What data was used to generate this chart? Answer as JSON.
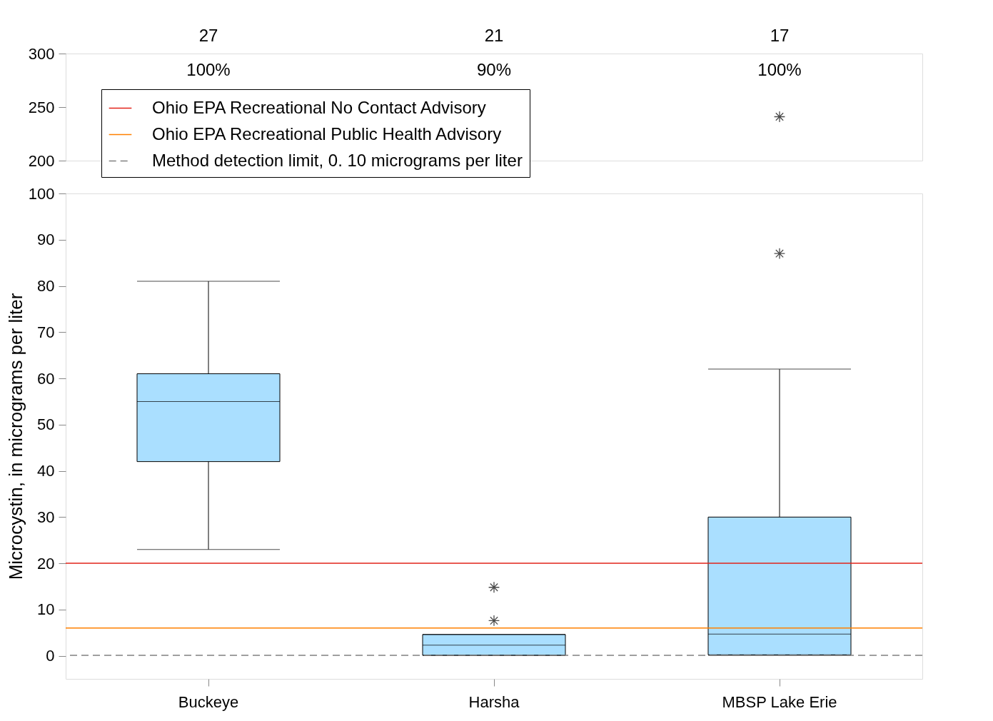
{
  "chart_data": [
    {
      "type": "scatter",
      "categories": [
        "Buckeye",
        "Harsha",
        "MBSP Lake Erie"
      ],
      "ylim": [
        200,
        300
      ],
      "yticks": [
        200,
        250,
        300
      ],
      "grid": false,
      "tick_labels": "y",
      "marker": "cross",
      "series": [
        {
          "type": "scatter",
          "color": "#000000",
          "x": [
            "MBSP Lake Erie"
          ],
          "values": [
            241
          ]
        }
      ],
      "annotations": [
        "27",
        "21",
        "17",
        "100%",
        "90%",
        "100%"
      ]
    },
    {
      "type": "box",
      "categories": [
        "Buckeye",
        "Harsha",
        "MBSP Lake Erie"
      ],
      "ylabel": "Microcystin, in micrograms per liter",
      "ylim": [
        -5,
        100
      ],
      "yticks": [
        0,
        10,
        20,
        30,
        40,
        50,
        60,
        70,
        80,
        90,
        100
      ],
      "grid": false,
      "marker": "cross",
      "legend": "top left",
      "series": [
        {
          "color": "#aadfff",
          "boxes": [
            {
              "low": 23,
              "q1": 42,
              "median": 55,
              "q3": 61,
              "high": 81
            },
            {
              "low": 0.1,
              "q1": 0.1,
              "median": 2.3,
              "q3": 4.6,
              "high": 4.6,
              "outliers": [
                7.6,
                14.8
              ]
            },
            {
              "low": 0.1,
              "q1": 0.2,
              "median": 4.7,
              "q3": 30,
              "high": 62,
              "outliers": [
                87
              ]
            }
          ]
        }
      ],
      "ref_lines": [
        {
          "axis": "y",
          "value": 20,
          "label": "Ohio EPA Recreational No Contact Advisory",
          "color": "#e2231a",
          "line_style": "solid"
        },
        {
          "axis": "y",
          "value": 6,
          "label": "Ohio EPA Recreational Public Health Advisory",
          "color": "#ff8000",
          "line_style": "solid"
        },
        {
          "axis": "y",
          "value": 0.1,
          "label": "Method detection limit, 0. 10 micrograms per liter",
          "color": "#808080",
          "line_style": "dashed"
        }
      ]
    }
  ]
}
